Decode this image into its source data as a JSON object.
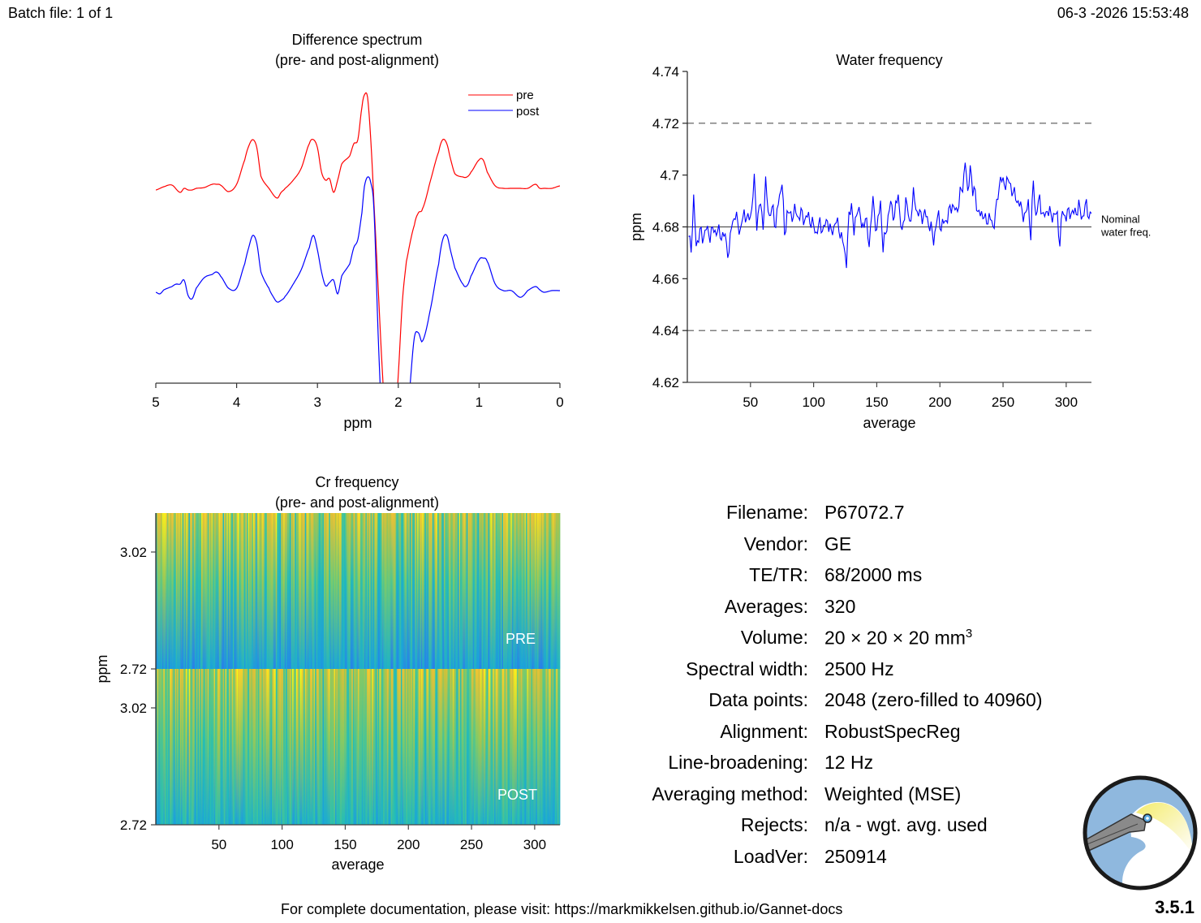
{
  "header": {
    "batch": "Batch file: 1 of 1",
    "datetime": "06-3 -2026 15:53:48"
  },
  "footer": {
    "docs": "For complete documentation, please visit: https://markmikkelsen.github.io/Gannet-docs",
    "version": "3.5.1"
  },
  "logo": {
    "name": "gannet-logo"
  },
  "info": [
    {
      "label": "Filename:",
      "value": "P67072.7"
    },
    {
      "label": "Vendor:",
      "value": "GE"
    },
    {
      "label": "TE/TR:",
      "value": "68/2000 ms"
    },
    {
      "label": "Averages:",
      "value": "320"
    },
    {
      "label": "Volume:",
      "value": "20 × 20 × 20 mm",
      "sup": "3"
    },
    {
      "label": "Spectral width:",
      "value": "2500 Hz"
    },
    {
      "label": "Data points:",
      "value": "2048 (zero-filled to 40960)"
    },
    {
      "label": "Alignment:",
      "value": "RobustSpecReg"
    },
    {
      "label": "Line-broadening:",
      "value": "12 Hz"
    },
    {
      "label": "Averaging method:",
      "value": "Weighted (MSE)"
    },
    {
      "label": "Rejects:",
      "value": "n/a - wgt. avg. used"
    },
    {
      "label": "LoadVer:",
      "value": "250914"
    }
  ],
  "chart_data": [
    {
      "type": "line",
      "title": "Difference spectrum",
      "subtitle": "(pre- and post-alignment)",
      "xlabel": "ppm",
      "ylabel": "",
      "xlim": [
        5,
        0
      ],
      "x_reversed": true,
      "xticks": [
        "5",
        "4",
        "3",
        "2",
        "1",
        "0"
      ],
      "legend": {
        "placement": "top-right",
        "entries": [
          "pre",
          "post"
        ]
      },
      "colors": {
        "pre": "#ff0000",
        "post": "#0000ff"
      },
      "series": [
        {
          "name": "pre",
          "offset": 1.0,
          "x": [
            5.0,
            4.9,
            4.8,
            4.7,
            4.65,
            4.6,
            4.55,
            4.5,
            4.4,
            4.3,
            4.25,
            4.2,
            4.1,
            4.0,
            3.9,
            3.85,
            3.8,
            3.75,
            3.7,
            3.6,
            3.5,
            3.45,
            3.4,
            3.3,
            3.2,
            3.1,
            3.05,
            3.0,
            2.95,
            2.9,
            2.85,
            2.8,
            2.75,
            2.7,
            2.6,
            2.55,
            2.5,
            2.45,
            2.42,
            2.38,
            2.34,
            2.3,
            2.25,
            2.2,
            2.15,
            2.1,
            2.05,
            2.0,
            1.95,
            1.9,
            1.8,
            1.75,
            1.7,
            1.6,
            1.5,
            1.45,
            1.4,
            1.35,
            1.3,
            1.2,
            1.15,
            1.1,
            1.0,
            0.95,
            0.9,
            0.8,
            0.7,
            0.6,
            0.5,
            0.4,
            0.3,
            0.25,
            0.2,
            0.1,
            0.0
          ],
          "y": [
            -0.02,
            0.02,
            0.04,
            -0.05,
            0.0,
            -0.02,
            -0.02,
            0.0,
            0.01,
            0.05,
            0.05,
            0.04,
            -0.04,
            0.05,
            0.35,
            0.52,
            0.6,
            0.5,
            0.15,
            0.0,
            -0.12,
            -0.05,
            0.0,
            0.1,
            0.25,
            0.55,
            0.6,
            0.5,
            0.2,
            0.1,
            0.12,
            -0.05,
            0.1,
            0.3,
            0.4,
            0.55,
            0.6,
            1.0,
            1.15,
            1.12,
            0.6,
            -0.2,
            -1.2,
            -2.2,
            -3.0,
            -3.3,
            -3.0,
            -2.3,
            -1.4,
            -0.9,
            -0.45,
            -0.3,
            -0.25,
            0.1,
            0.45,
            0.6,
            0.55,
            0.35,
            0.18,
            0.14,
            0.14,
            0.2,
            0.35,
            0.35,
            0.2,
            0.03,
            0.0,
            0.0,
            0.0,
            0.0,
            0.05,
            0.0,
            0.0,
            0.0,
            0.03
          ]
        },
        {
          "name": "post",
          "offset": 0.0,
          "x": [
            5.0,
            4.95,
            4.9,
            4.8,
            4.75,
            4.7,
            4.65,
            4.6,
            4.55,
            4.5,
            4.4,
            4.3,
            4.25,
            4.2,
            4.1,
            4.0,
            3.9,
            3.85,
            3.8,
            3.75,
            3.7,
            3.6,
            3.55,
            3.5,
            3.45,
            3.4,
            3.3,
            3.2,
            3.1,
            3.05,
            3.0,
            2.95,
            2.9,
            2.85,
            2.8,
            2.75,
            2.7,
            2.6,
            2.55,
            2.5,
            2.45,
            2.42,
            2.38,
            2.34,
            2.3,
            2.25,
            2.2,
            2.15,
            2.1,
            2.05,
            2.0,
            1.95,
            1.9,
            1.85,
            1.8,
            1.75,
            1.7,
            1.6,
            1.5,
            1.45,
            1.4,
            1.35,
            1.3,
            1.2,
            1.15,
            1.1,
            1.0,
            0.95,
            0.9,
            0.8,
            0.7,
            0.6,
            0.5,
            0.45,
            0.4,
            0.3,
            0.25,
            0.2,
            0.1,
            0.0
          ],
          "y": [
            0.0,
            -0.02,
            0.03,
            0.07,
            0.1,
            0.1,
            0.15,
            -0.04,
            -0.08,
            0.05,
            0.18,
            0.22,
            0.25,
            0.2,
            0.05,
            0.05,
            0.35,
            0.55,
            0.7,
            0.6,
            0.25,
            0.05,
            -0.05,
            -0.12,
            -0.1,
            -0.05,
            0.1,
            0.28,
            0.55,
            0.7,
            0.52,
            0.25,
            0.08,
            0.12,
            0.15,
            -0.02,
            0.2,
            0.35,
            0.55,
            0.65,
            0.98,
            1.3,
            1.42,
            1.35,
            1.0,
            -0.5,
            -1.7,
            -2.7,
            -3.3,
            -3.5,
            -3.3,
            -2.6,
            -1.8,
            -1.1,
            -0.55,
            -0.5,
            -0.6,
            -0.2,
            0.35,
            0.65,
            0.7,
            0.5,
            0.3,
            0.1,
            0.08,
            0.2,
            0.4,
            0.42,
            0.38,
            0.1,
            0.02,
            0.02,
            -0.06,
            -0.04,
            0.02,
            0.07,
            0.03,
            0.0,
            0.02,
            0.02
          ]
        }
      ]
    },
    {
      "type": "line",
      "title": "Water frequency",
      "xlabel": "average",
      "ylabel": "ppm",
      "xlim": [
        1,
        320
      ],
      "ylim": [
        4.62,
        4.74
      ],
      "xticks": [
        "50",
        "100",
        "150",
        "200",
        "250",
        "300"
      ],
      "yticks": [
        "4.62",
        "4.64",
        "4.66",
        "4.68",
        "4.7",
        "4.72",
        "4.74"
      ],
      "reference_lines": [
        {
          "y": 4.72,
          "style": "dashed"
        },
        {
          "y": 4.64,
          "style": "dashed"
        },
        {
          "y": 4.68,
          "style": "solid",
          "label": [
            "Nominal",
            "water freq."
          ]
        }
      ],
      "color": "#0000ff",
      "series": [
        {
          "name": "water",
          "x_start": 1,
          "x_step": 1,
          "keypoints": [
            [
              1,
              4.676
            ],
            [
              3,
              4.672
            ],
            [
              5,
              4.69
            ],
            [
              7,
              4.673
            ],
            [
              10,
              4.678
            ],
            [
              12,
              4.676
            ],
            [
              15,
              4.679
            ],
            [
              18,
              4.677
            ],
            [
              21,
              4.679
            ],
            [
              24,
              4.678
            ],
            [
              27,
              4.677
            ],
            [
              30,
              4.676
            ],
            [
              33,
              4.669
            ],
            [
              35,
              4.681
            ],
            [
              37,
              4.684
            ],
            [
              40,
              4.682
            ],
            [
              42,
              4.678
            ],
            [
              45,
              4.686
            ],
            [
              48,
              4.682
            ],
            [
              51,
              4.687
            ],
            [
              53,
              4.698
            ],
            [
              55,
              4.682
            ],
            [
              58,
              4.689
            ],
            [
              60,
              4.681
            ],
            [
              62,
              4.696
            ],
            [
              65,
              4.684
            ],
            [
              68,
              4.687
            ],
            [
              70,
              4.68
            ],
            [
              72,
              4.689
            ],
            [
              75,
              4.698
            ],
            [
              77,
              4.676
            ],
            [
              79,
              4.686
            ],
            [
              82,
              4.684
            ],
            [
              85,
              4.686
            ],
            [
              88,
              4.684
            ],
            [
              90,
              4.685
            ],
            [
              93,
              4.683
            ],
            [
              96,
              4.684
            ],
            [
              99,
              4.681
            ],
            [
              102,
              4.678
            ],
            [
              105,
              4.681
            ],
            [
              108,
              4.679
            ],
            [
              111,
              4.683
            ],
            [
              114,
              4.677
            ],
            [
              117,
              4.682
            ],
            [
              120,
              4.68
            ],
            [
              122,
              4.676
            ],
            [
              124,
              4.672
            ],
            [
              126,
              4.667
            ],
            [
              128,
              4.683
            ],
            [
              130,
              4.69
            ],
            [
              132,
              4.677
            ],
            [
              135,
              4.689
            ],
            [
              138,
              4.68
            ],
            [
              141,
              4.683
            ],
            [
              144,
              4.674
            ],
            [
              147,
              4.69
            ],
            [
              150,
              4.678
            ],
            [
              153,
              4.69
            ],
            [
              155,
              4.671
            ],
            [
              158,
              4.681
            ],
            [
              161,
              4.689
            ],
            [
              164,
              4.684
            ],
            [
              167,
              4.693
            ],
            [
              170,
              4.676
            ],
            [
              173,
              4.691
            ],
            [
              176,
              4.681
            ],
            [
              179,
              4.692
            ],
            [
              182,
              4.686
            ],
            [
              185,
              4.684
            ],
            [
              188,
              4.685
            ],
            [
              191,
              4.682
            ],
            [
              193,
              4.679
            ],
            [
              195,
              4.675
            ],
            [
              197,
              4.681
            ],
            [
              199,
              4.684
            ],
            [
              201,
              4.68
            ],
            [
              204,
              4.682
            ],
            [
              207,
              4.685
            ],
            [
              210,
              4.689
            ],
            [
              213,
              4.685
            ],
            [
              216,
              4.693
            ],
            [
              218,
              4.694
            ],
            [
              220,
              4.707
            ],
            [
              222,
              4.691
            ],
            [
              224,
              4.705
            ],
            [
              226,
              4.692
            ],
            [
              228,
              4.695
            ],
            [
              230,
              4.684
            ],
            [
              233,
              4.686
            ],
            [
              236,
              4.682
            ],
            [
              239,
              4.684
            ],
            [
              242,
              4.68
            ],
            [
              245,
              4.688
            ],
            [
              248,
              4.7
            ],
            [
              250,
              4.696
            ],
            [
              253,
              4.698
            ],
            [
              256,
              4.696
            ],
            [
              259,
              4.692
            ],
            [
              262,
              4.69
            ],
            [
              265,
              4.686
            ],
            [
              268,
              4.684
            ],
            [
              270,
              4.69
            ],
            [
              272,
              4.676
            ],
            [
              274,
              4.698
            ],
            [
              276,
              4.684
            ],
            [
              279,
              4.691
            ],
            [
              282,
              4.683
            ],
            [
              285,
              4.687
            ],
            [
              288,
              4.684
            ],
            [
              290,
              4.685
            ],
            [
              293,
              4.684
            ],
            [
              295,
              4.674
            ],
            [
              297,
              4.686
            ],
            [
              300,
              4.684
            ],
            [
              303,
              4.686
            ],
            [
              306,
              4.685
            ],
            [
              309,
              4.687
            ]
          ]
        }
      ]
    },
    {
      "type": "heatmap",
      "title": "Cr frequency",
      "subtitle": "(pre- and post-alignment)",
      "xlabel": "average",
      "ylabel": "ppm",
      "xlim": [
        1,
        320
      ],
      "xticks": [
        "50",
        "100",
        "150",
        "200",
        "250",
        "300"
      ],
      "yticks_pre": [
        "3.02",
        "2.72"
      ],
      "yticks_post": [
        "3.02",
        "2.72"
      ],
      "panels": [
        "PRE",
        "POST"
      ],
      "colormap": [
        "#3e26a8",
        "#2f6ff0",
        "#1aa3db",
        "#26bfb2",
        "#7ccb6a",
        "#c3c13c",
        "#f6c131",
        "#f9fb15"
      ]
    }
  ]
}
